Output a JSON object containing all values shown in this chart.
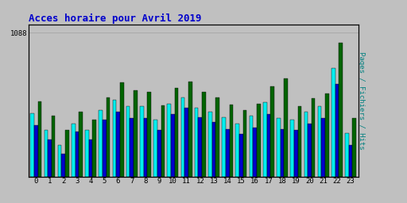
{
  "title": "Acces horaire pour Avril 2019",
  "ylabel_right": "Pages / Fichiers / Hits",
  "hours": [
    0,
    1,
    2,
    3,
    4,
    5,
    6,
    7,
    8,
    9,
    10,
    11,
    12,
    13,
    14,
    15,
    16,
    17,
    18,
    19,
    20,
    21,
    22,
    23
  ],
  "pages": [
    480,
    350,
    240,
    400,
    350,
    500,
    580,
    530,
    530,
    430,
    550,
    600,
    520,
    490,
    450,
    400,
    460,
    560,
    440,
    430,
    490,
    530,
    820,
    330
  ],
  "fichiers": [
    390,
    280,
    175,
    340,
    280,
    430,
    490,
    440,
    440,
    350,
    470,
    520,
    450,
    410,
    360,
    320,
    370,
    470,
    360,
    350,
    400,
    440,
    700,
    240
  ],
  "hits": [
    570,
    460,
    350,
    490,
    430,
    600,
    710,
    650,
    640,
    540,
    670,
    720,
    640,
    600,
    545,
    500,
    550,
    680,
    740,
    530,
    590,
    630,
    1010,
    440
  ],
  "color_pages": "#00EEEE",
  "color_fichiers": "#0000CC",
  "color_hits": "#006400",
  "bg_color": "#C0C0C0",
  "plot_bg": "#C0C0C0",
  "border_color": "#000000",
  "title_color": "#0000CC",
  "ylabel_color": "#008080",
  "grid_color": "#A0A0A0",
  "ylim": [
    0,
    1150
  ],
  "bar_width": 0.27,
  "ytick_val": 1088
}
